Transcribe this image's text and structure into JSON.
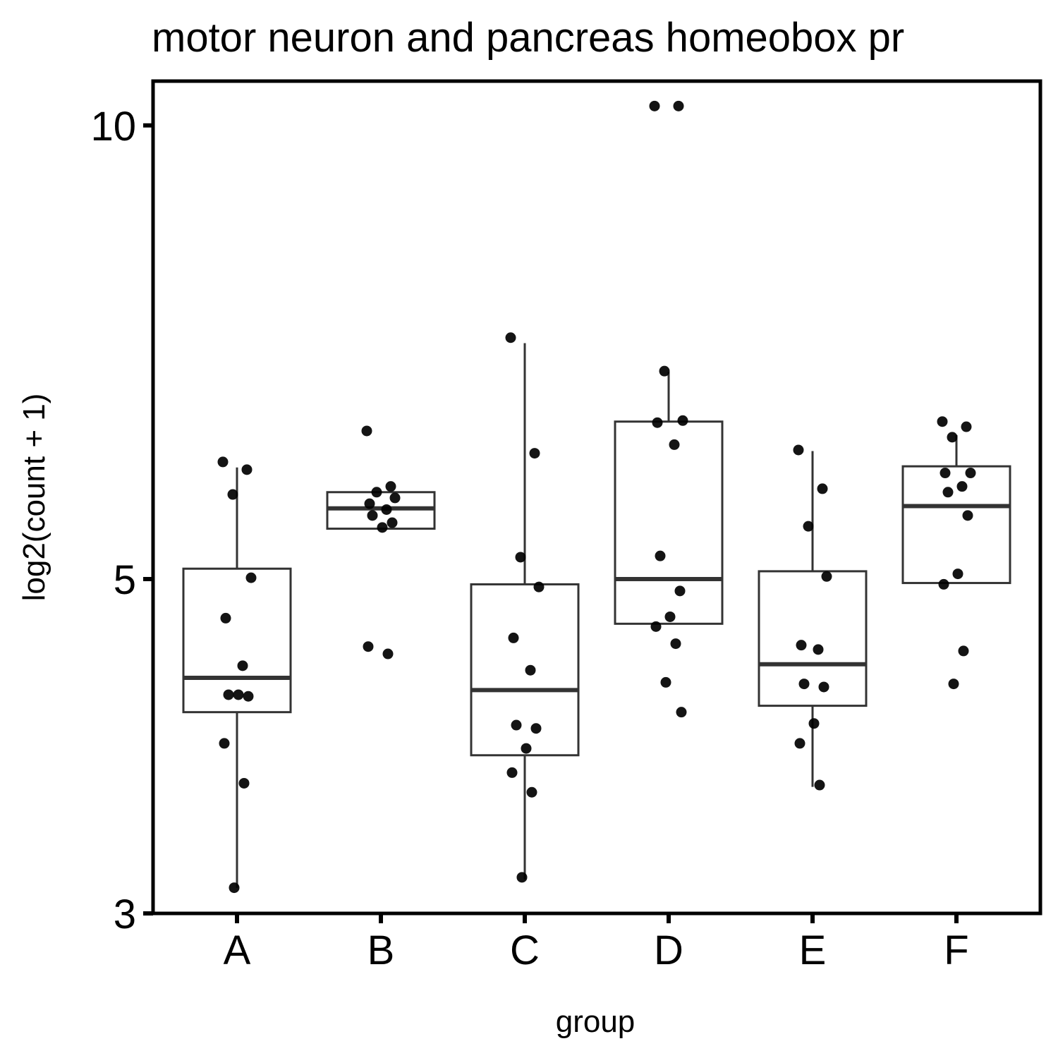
{
  "chart_data": {
    "type": "box",
    "title": "motor neuron and pancreas homeobox pr",
    "xlabel": "group",
    "ylabel": "log2(count + 1)",
    "y_scale": "log",
    "ylim": [
      3,
      10.7
    ],
    "y_ticks": [
      3,
      5,
      10
    ],
    "y_tick_labels": [
      "3",
      "5",
      "10"
    ],
    "categories": [
      "A",
      "B",
      "C",
      "D",
      "E",
      "F"
    ],
    "boxes": [
      {
        "group": "A",
        "whisker_low": 3.12,
        "q1": 4.08,
        "median": 4.3,
        "q3": 5.08,
        "whisker_high": 5.93
      },
      {
        "group": "B",
        "whisker_low": 5.4,
        "q1": 5.4,
        "median": 5.57,
        "q3": 5.71,
        "whisker_high": 5.71
      },
      {
        "group": "C",
        "whisker_low": 3.16,
        "q1": 3.82,
        "median": 4.22,
        "q3": 4.96,
        "whisker_high": 7.17
      },
      {
        "group": "D",
        "whisker_low": 4.67,
        "q1": 4.67,
        "median": 5.0,
        "q3": 6.36,
        "whisker_high": 6.86
      },
      {
        "group": "E",
        "whisker_low": 3.64,
        "q1": 4.12,
        "median": 4.39,
        "q3": 5.06,
        "whisker_high": 6.08
      },
      {
        "group": "F",
        "whisker_low": 4.97,
        "q1": 4.97,
        "median": 5.59,
        "q3": 5.94,
        "whisker_high": 6.23
      }
    ],
    "points": [
      {
        "group": "A",
        "values": [
          5.98,
          5.91,
          5.69,
          5.01,
          4.71,
          4.38,
          4.19,
          4.18,
          4.19,
          3.89,
          3.66,
          3.12
        ]
      },
      {
        "group": "B",
        "values": [
          6.27,
          5.76,
          5.71,
          5.66,
          5.61,
          5.56,
          5.51,
          5.45,
          5.41,
          4.51,
          4.46
        ]
      },
      {
        "group": "C",
        "values": [
          7.23,
          6.06,
          5.17,
          4.94,
          4.57,
          4.35,
          4.0,
          3.98,
          3.86,
          3.72,
          3.61,
          3.17
        ]
      },
      {
        "group": "D",
        "values": [
          10.3,
          10.3,
          6.87,
          6.37,
          6.35,
          6.14,
          5.18,
          4.91,
          4.72,
          4.65,
          4.53,
          4.27,
          4.08
        ]
      },
      {
        "group": "E",
        "values": [
          6.09,
          5.74,
          5.42,
          5.02,
          4.52,
          4.49,
          4.26,
          4.24,
          4.01,
          3.89,
          3.65
        ]
      },
      {
        "group": "F",
        "values": [
          6.36,
          6.31,
          6.21,
          5.88,
          5.88,
          5.76,
          5.71,
          5.51,
          5.04,
          4.96,
          4.48,
          4.26
        ]
      }
    ]
  }
}
